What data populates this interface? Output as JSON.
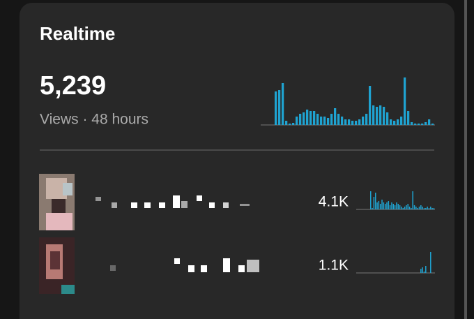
{
  "header": {
    "title": "Realtime"
  },
  "summary": {
    "value": "5,239",
    "caption": "Views · 48 hours",
    "chart": [
      48,
      50,
      60,
      6,
      2,
      3,
      12,
      16,
      18,
      22,
      20,
      20,
      16,
      12,
      12,
      10,
      16,
      24,
      16,
      12,
      8,
      8,
      6,
      6,
      8,
      12,
      16,
      56,
      28,
      26,
      28,
      26,
      18,
      8,
      6,
      8,
      12,
      68,
      20,
      4,
      2,
      2,
      2,
      4,
      8,
      2
    ]
  },
  "rows": [
    {
      "views": "4.1K",
      "chart": [
        26,
        2,
        18,
        24,
        10,
        12,
        8,
        14,
        10,
        8,
        10,
        12,
        6,
        10,
        8,
        6,
        10,
        8,
        6,
        4,
        2,
        4,
        6,
        8,
        4,
        2,
        26,
        6,
        4,
        2,
        4,
        6,
        4,
        2,
        2,
        4,
        2,
        4,
        2,
        2
      ]
    },
    {
      "views": "1.1K",
      "chart": [
        0,
        0,
        0,
        0,
        0,
        0,
        0,
        0,
        0,
        0,
        0,
        0,
        0,
        0,
        0,
        0,
        0,
        0,
        0,
        0,
        0,
        0,
        0,
        0,
        0,
        0,
        0,
        0,
        0,
        0,
        0,
        6,
        8,
        2,
        10,
        0,
        0,
        30,
        0,
        0
      ]
    }
  ]
}
